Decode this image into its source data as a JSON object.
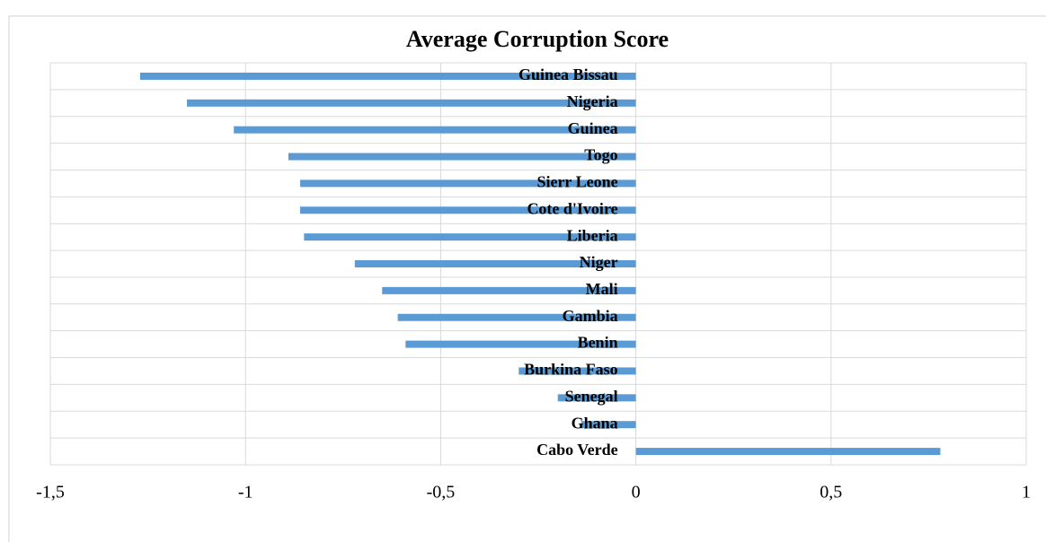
{
  "chart_data": {
    "type": "hbar",
    "title": "Average Corruption Score",
    "categories": [
      "Guinea Bissau",
      "Nigeria",
      "Guinea",
      "Togo",
      "Sierr Leone",
      "Cote d'Ivoire",
      "Liberia",
      "Niger",
      "Mali",
      "Gambia",
      "Benin",
      "Burkina Faso",
      "Senegal",
      "Ghana",
      "Cabo Verde"
    ],
    "values": [
      -1.27,
      -1.15,
      -1.03,
      -0.89,
      -0.86,
      -0.86,
      -0.85,
      -0.72,
      -0.65,
      -0.61,
      -0.59,
      -0.3,
      -0.2,
      -0.14,
      0.78
    ],
    "color": "#5b9bd5",
    "xlim": [
      -1.5,
      1
    ],
    "xticks": [
      {
        "value": -1.5,
        "label": "-1,5"
      },
      -1,
      {
        "value": -0.5,
        "label": "-0,5"
      },
      0,
      {
        "value": 0.5,
        "label": "0,5"
      },
      1
    ],
    "grid": true
  }
}
